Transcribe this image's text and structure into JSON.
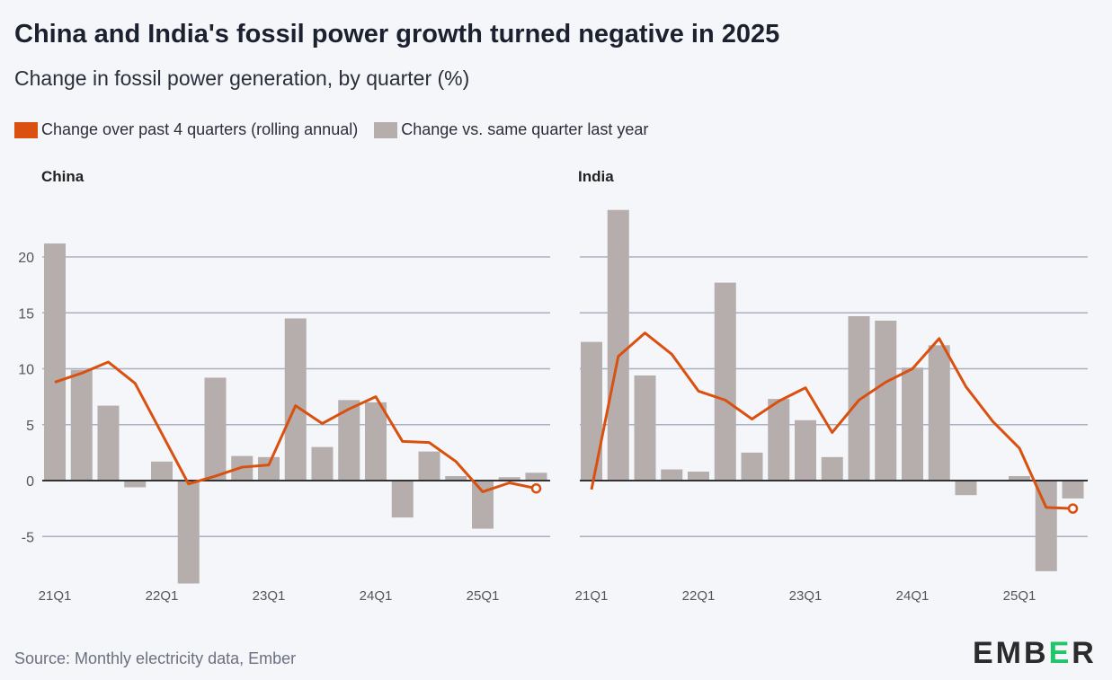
{
  "title": "China and India's fossil power growth turned negative in 2025",
  "subtitle": "Change in fossil power generation, by quarter (%)",
  "source": "Source: Monthly electricity data, Ember",
  "logo": {
    "pre": "EMB",
    "mid": "E",
    "post": "R"
  },
  "colors": {
    "line": "#d9500f",
    "bar": "#b5aeac",
    "grid": "#aab0c0",
    "zero": "#333333"
  },
  "chart_data": [
    {
      "type": "bar+line",
      "title": "China",
      "ylim": [
        -9.5,
        24
      ],
      "yticks": [
        -5,
        0,
        5,
        10,
        15,
        20
      ],
      "quarters": [
        "21Q1",
        "21Q2",
        "21Q3",
        "21Q4",
        "22Q1",
        "22Q2",
        "22Q3",
        "22Q4",
        "23Q1",
        "23Q2",
        "23Q3",
        "23Q4",
        "24Q1",
        "24Q2",
        "24Q3",
        "24Q4",
        "25Q1",
        "25Q2",
        "25Q3"
      ],
      "xticks": [
        "21Q1",
        "22Q1",
        "23Q1",
        "24Q1",
        "25Q1"
      ],
      "series": [
        {
          "name": "Change over past 4 quarters (rolling annual)",
          "kind": "line",
          "values": [
            8.8,
            9.6,
            10.6,
            8.7,
            4.2,
            -0.3,
            0.4,
            1.2,
            1.4,
            6.7,
            5.1,
            6.4,
            7.5,
            3.5,
            3.4,
            1.7,
            -1.0,
            -0.2,
            -0.7
          ]
        },
        {
          "name": "Change vs. same quarter last year",
          "kind": "bar",
          "values": [
            21.2,
            9.9,
            6.7,
            -0.6,
            1.7,
            -9.2,
            9.2,
            2.2,
            2.1,
            14.5,
            3.0,
            7.2,
            7.0,
            -3.3,
            2.6,
            0.4,
            -4.3,
            0.3,
            0.7
          ]
        }
      ]
    },
    {
      "type": "bar+line",
      "title": "India",
      "ylim": [
        -9.5,
        24
      ],
      "yticks": [
        -5,
        0,
        5,
        10,
        15,
        20
      ],
      "quarters": [
        "21Q1",
        "21Q2",
        "21Q3",
        "21Q4",
        "22Q1",
        "22Q2",
        "22Q3",
        "22Q4",
        "23Q1",
        "23Q2",
        "23Q3",
        "23Q4",
        "24Q1",
        "24Q2",
        "24Q3",
        "24Q4",
        "25Q1",
        "25Q2",
        "25Q3"
      ],
      "xticks": [
        "21Q1",
        "22Q1",
        "23Q1",
        "24Q1",
        "25Q1"
      ],
      "series": [
        {
          "name": "Change over past 4 quarters (rolling annual)",
          "kind": "line",
          "values": [
            -0.8,
            11.1,
            13.2,
            11.3,
            8.0,
            7.2,
            5.5,
            7.1,
            8.3,
            4.3,
            7.2,
            8.8,
            10.0,
            12.7,
            8.4,
            5.3,
            2.9,
            -2.4,
            -2.5
          ]
        },
        {
          "name": "Change vs. same quarter last year",
          "kind": "bar",
          "values": [
            12.4,
            24.2,
            9.4,
            1.0,
            0.8,
            17.7,
            2.5,
            7.3,
            5.4,
            2.1,
            14.7,
            14.3,
            10.1,
            12.1,
            -1.3,
            0.0,
            0.4,
            -8.1,
            -1.6
          ]
        }
      ]
    }
  ],
  "legend": [
    {
      "label": "Change over past 4 quarters (rolling annual)",
      "color": "#d9500f"
    },
    {
      "label": "Change vs. same quarter last year",
      "color": "#b5aeac"
    }
  ]
}
